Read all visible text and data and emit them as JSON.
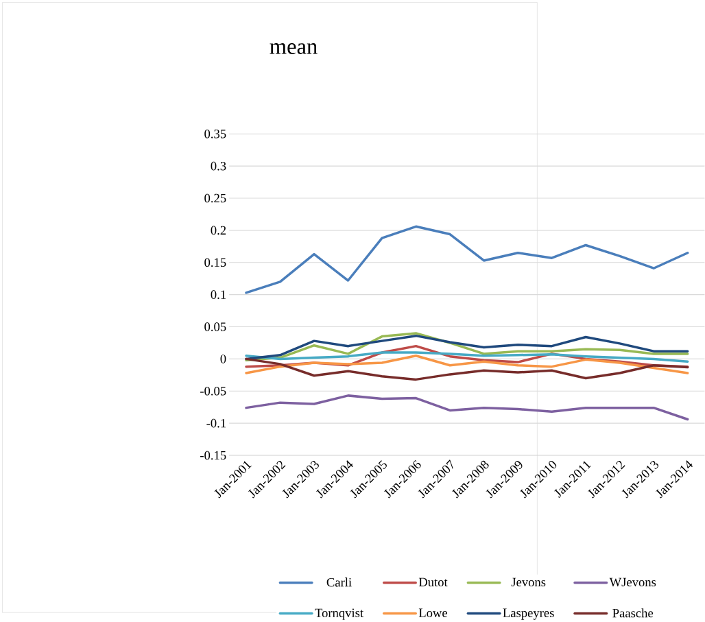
{
  "chart_data": {
    "type": "line",
    "title": "mean",
    "categories": [
      "Jan-2001",
      "Jan-2002",
      "Jan-2003",
      "Jan-2004",
      "Jan-2005",
      "Jan-2006",
      "Jan-2007",
      "Jan-2008",
      "Jan-2009",
      "Jan-2010",
      "Jan-2011",
      "Jan-2012",
      "Jan-2013",
      "Jan-2014"
    ],
    "series": [
      {
        "name": "Carli",
        "color": "#4a7ebb",
        "values": [
          0.103,
          0.12,
          0.163,
          0.122,
          0.188,
          0.206,
          0.194,
          0.153,
          0.165,
          0.157,
          0.177,
          0.16,
          0.141,
          0.165
        ]
      },
      {
        "name": "Dutot",
        "color": "#be4b48",
        "values": [
          -0.012,
          -0.01,
          -0.006,
          -0.01,
          0.01,
          0.02,
          0.004,
          -0.002,
          -0.005,
          0.008,
          0.0,
          -0.004,
          -0.01,
          -0.012
        ]
      },
      {
        "name": "Jevons",
        "color": "#98b954",
        "values": [
          -0.002,
          0.002,
          0.021,
          0.008,
          0.035,
          0.04,
          0.025,
          0.008,
          0.012,
          0.012,
          0.015,
          0.014,
          0.008,
          0.008
        ]
      },
      {
        "name": "WJevons",
        "color": "#7d60a0",
        "values": [
          -0.076,
          -0.068,
          -0.07,
          -0.057,
          -0.062,
          -0.061,
          -0.08,
          -0.076,
          -0.078,
          -0.082,
          -0.076,
          -0.076,
          -0.076,
          -0.094
        ]
      },
      {
        "name": "Tornqvist",
        "color": "#46aac5",
        "values": [
          0.005,
          0.0,
          0.002,
          0.004,
          0.01,
          0.01,
          0.008,
          0.005,
          0.006,
          0.007,
          0.004,
          0.002,
          0.0,
          -0.004
        ]
      },
      {
        "name": "Lowe",
        "color": "#f79646",
        "values": [
          -0.022,
          -0.012,
          -0.006,
          -0.008,
          -0.006,
          0.005,
          -0.01,
          -0.004,
          -0.01,
          -0.012,
          -0.001,
          -0.006,
          -0.014,
          -0.022
        ]
      },
      {
        "name": "Laspeyres",
        "color": "#1f497d",
        "values": [
          0.0,
          0.006,
          0.028,
          0.02,
          0.028,
          0.036,
          0.026,
          0.018,
          0.022,
          0.02,
          0.034,
          0.024,
          0.012,
          0.012
        ]
      },
      {
        "name": "Paasche",
        "color": "#772c2a",
        "values": [
          0.0,
          -0.008,
          -0.026,
          -0.019,
          -0.027,
          -0.032,
          -0.024,
          -0.018,
          -0.021,
          -0.018,
          -0.03,
          -0.022,
          -0.01,
          -0.013
        ]
      }
    ],
    "ylim": [
      -0.15,
      0.35
    ],
    "yticks": [
      -0.15,
      -0.1,
      -0.05,
      0,
      0.05,
      0.1,
      0.15,
      0.2,
      0.25,
      0.3,
      0.35
    ],
    "grid": "y",
    "legend": "bottom"
  }
}
